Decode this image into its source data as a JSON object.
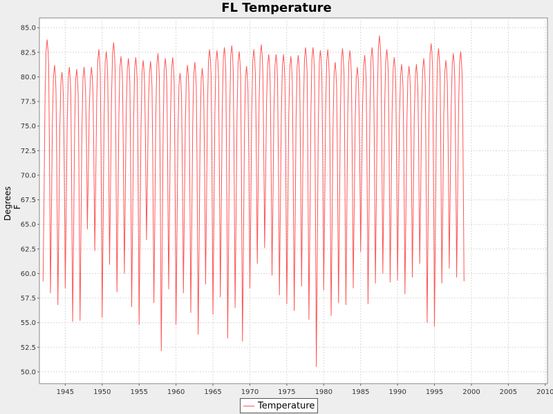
{
  "chart_data": {
    "type": "line",
    "title": "FL Temperature",
    "xlabel": "",
    "ylabel": "Degrees F",
    "xlim": [
      1941.5,
      2010.3
    ],
    "ylim": [
      48.8,
      86.0
    ],
    "x_ticks": [
      1945,
      1950,
      1955,
      1960,
      1965,
      1970,
      1975,
      1980,
      1985,
      1990,
      1995,
      2000,
      2005,
      2010
    ],
    "y_ticks": [
      50.0,
      52.5,
      55.0,
      57.5,
      60.0,
      62.5,
      65.0,
      67.5,
      70.0,
      72.5,
      75.0,
      77.5,
      80.0,
      82.5,
      85.0
    ],
    "grid": true,
    "legend_position": "bottom-center",
    "colors": {
      "series": "#ff5555",
      "grid": "#d8d8d8",
      "plot_bg": "#ffffff",
      "page_bg": "#eeeeee"
    },
    "series": [
      {
        "name": "Temperature",
        "x_start": 1942.0,
        "x_step_years": 0.0833,
        "annual_summer_peaks_F": [
          83.8,
          81.2,
          80.5,
          81.0,
          80.8,
          81.0,
          81.0,
          82.8,
          82.6,
          83.5,
          82.1,
          81.9,
          82.0,
          81.7,
          81.6,
          82.4,
          81.9,
          82.0,
          80.4,
          81.2,
          81.5,
          80.9,
          82.8,
          82.7,
          83.0,
          83.2,
          82.6,
          81.1,
          82.8,
          83.3,
          82.3,
          82.3,
          82.3,
          82.1,
          82.2,
          83.0,
          83.0,
          82.7,
          82.8,
          81.5,
          82.9,
          82.7,
          81.0,
          82.2,
          83.0,
          84.2,
          82.8,
          82.0,
          81.3,
          81.1,
          81.3,
          81.9,
          83.4,
          82.9,
          81.7,
          82.4,
          82.6
        ],
        "annual_winter_troughs_F": [
          59.2,
          58.0,
          56.8,
          58.5,
          55.1,
          55.2,
          64.5,
          62.3,
          55.5,
          60.9,
          58.1,
          60.0,
          56.6,
          54.8,
          63.4,
          57.0,
          52.1,
          58.4,
          54.8,
          58.0,
          56.0,
          53.8,
          58.9,
          55.8,
          57.6,
          53.4,
          56.5,
          53.1,
          58.5,
          61.0,
          62.6,
          59.8,
          57.8,
          56.9,
          56.2,
          58.7,
          55.3,
          50.5,
          58.3,
          55.7,
          57.0,
          56.8,
          58.5,
          62.2,
          56.9,
          59.0,
          60.0,
          59.1,
          59.3,
          57.9,
          59.6,
          61.0,
          55.0,
          54.6,
          59.0,
          60.5,
          59.6,
          60.3,
          59.2
        ]
      }
    ]
  }
}
